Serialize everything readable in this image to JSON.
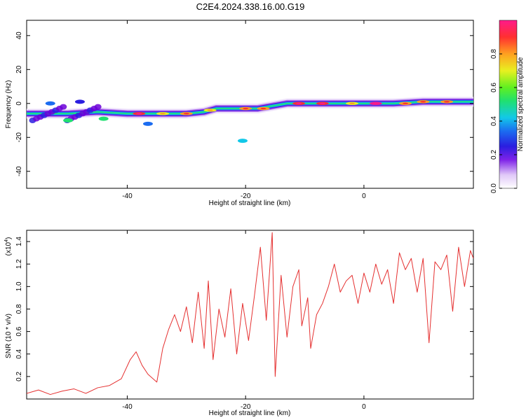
{
  "title": "C2E4.2024.338.16.00.G19",
  "colors": {
    "snr_line": "#e53030",
    "colormap": [
      "#e8d8f8",
      "#b07ef0",
      "#6b00d8",
      "#2a1ee0",
      "#1b6cf0",
      "#12c8e8",
      "#20e070",
      "#60f020",
      "#e8f020",
      "#ffa020",
      "#ff3030",
      "#ff1a8a"
    ]
  },
  "chart_data": [
    {
      "type": "heatmap",
      "xlabel": "Height of straight line (km)",
      "ylabel": "Frequency (Hz)",
      "xlim": [
        -57,
        18.5
      ],
      "ylim": [
        -50,
        49
      ],
      "xticks": [
        -40,
        -20,
        0
      ],
      "xtick_labels": [
        "-40",
        "-20",
        "0"
      ],
      "yticks": [
        -40,
        -20,
        0,
        20,
        40
      ],
      "ytick_labels": [
        "-40",
        "-20",
        "0",
        "20",
        "40"
      ],
      "colorbar": {
        "label": "Normalized spectral amplitude",
        "range": [
          0,
          1
        ],
        "ticks": [
          0.0,
          0.2,
          0.4,
          0.6,
          0.8
        ],
        "tick_labels": [
          "0.0",
          "0.2",
          "0.4",
          "0.6",
          "0.8"
        ]
      },
      "ridge": [
        {
          "x": -57,
          "y": -6
        },
        {
          "x": -50,
          "y": -6
        },
        {
          "x": -45,
          "y": -5
        },
        {
          "x": -40,
          "y": -6
        },
        {
          "x": -35,
          "y": -6
        },
        {
          "x": -30,
          "y": -6
        },
        {
          "x": -27,
          "y": -5
        },
        {
          "x": -25,
          "y": -3
        },
        {
          "x": -18,
          "y": -3
        },
        {
          "x": -13,
          "y": 0
        },
        {
          "x": -5,
          "y": 0
        },
        {
          "x": 0,
          "y": 0
        },
        {
          "x": 5,
          "y": 0
        },
        {
          "x": 10,
          "y": 1
        },
        {
          "x": 18.5,
          "y": 1
        }
      ],
      "peaks": [
        {
          "x": -38,
          "y": -6,
          "v": 0.9
        },
        {
          "x": -34,
          "y": -6,
          "v": 0.75
        },
        {
          "x": -30,
          "y": -6,
          "v": 0.85
        },
        {
          "x": -26,
          "y": -4,
          "v": 0.7
        },
        {
          "x": -20,
          "y": -3,
          "v": 0.85
        },
        {
          "x": -17,
          "y": -3,
          "v": 0.8
        },
        {
          "x": -11,
          "y": 0,
          "v": 0.95
        },
        {
          "x": -7,
          "y": 0,
          "v": 0.9
        },
        {
          "x": -2,
          "y": 0,
          "v": 0.75
        },
        {
          "x": 2,
          "y": 0,
          "v": 1.0
        },
        {
          "x": 7,
          "y": 0,
          "v": 0.85
        },
        {
          "x": 10,
          "y": 1,
          "v": 0.8
        },
        {
          "x": 14,
          "y": 1,
          "v": 0.85
        }
      ],
      "blobs": [
        {
          "x": -20.5,
          "y": -22,
          "v": 0.45
        },
        {
          "x": -36.5,
          "y": -12,
          "v": 0.35
        },
        {
          "x": -44,
          "y": -9,
          "v": 0.55
        },
        {
          "x": -50,
          "y": -10,
          "v": 0.5
        },
        {
          "x": -53,
          "y": 0,
          "v": 0.4
        },
        {
          "x": -48,
          "y": 1,
          "v": 0.3
        }
      ]
    },
    {
      "type": "line",
      "xlabel": "Height of straight line (km)",
      "ylabel": "SNR (10 * v/v)",
      "yscale_label": "(x10",
      "yscale_exp": "4",
      "yscale_close": ")",
      "xlim": [
        -57,
        18.5
      ],
      "ylim": [
        0,
        1.5
      ],
      "xticks": [
        -40,
        -20,
        0
      ],
      "xtick_labels": [
        "-40",
        "-20",
        "0"
      ],
      "yticks": [
        0.2,
        0.4,
        0.6,
        0.8,
        1.0,
        1.2,
        1.4
      ],
      "ytick_labels": [
        "0.2",
        "0.4",
        "0.6",
        "0.8",
        "1.0",
        "1.2",
        "1.4"
      ],
      "series": [
        {
          "x": [
            -57,
            -55,
            -53,
            -51,
            -49,
            -47,
            -45,
            -43,
            -41,
            -39.5,
            -38.5,
            -37.5,
            -36.5,
            -35,
            -34,
            -33,
            -32,
            -31,
            -30,
            -29,
            -28,
            -27,
            -26.3,
            -25.5,
            -24.5,
            -23.5,
            -22.5,
            -21.5,
            -20.5,
            -19.5,
            -18.5,
            -17.5,
            -16.5,
            -15.5,
            -15,
            -14,
            -13,
            -12,
            -11,
            -10.5,
            -9.5,
            -9,
            -8,
            -7,
            -6,
            -5,
            -4,
            -3,
            -2,
            -1,
            0,
            1,
            2,
            3,
            4,
            5,
            6,
            7,
            8,
            9,
            10,
            11,
            12,
            13,
            14,
            15,
            16,
            17,
            18,
            18.5
          ],
          "y": [
            0.05,
            0.08,
            0.04,
            0.07,
            0.09,
            0.05,
            0.1,
            0.12,
            0.18,
            0.35,
            0.42,
            0.3,
            0.22,
            0.15,
            0.45,
            0.62,
            0.75,
            0.6,
            0.82,
            0.5,
            0.95,
            0.45,
            1.05,
            0.35,
            0.8,
            0.55,
            0.98,
            0.4,
            0.85,
            0.52,
            0.92,
            1.35,
            0.7,
            1.48,
            0.2,
            1.1,
            0.55,
            1.0,
            1.15,
            0.65,
            0.9,
            0.45,
            0.75,
            0.85,
            1.0,
            1.2,
            0.95,
            1.05,
            1.1,
            0.85,
            1.12,
            0.95,
            1.2,
            1.02,
            1.15,
            0.85,
            1.3,
            1.15,
            1.25,
            0.95,
            1.25,
            0.5,
            1.22,
            1.15,
            1.28,
            0.78,
            1.35,
            1.0,
            1.32,
            1.25
          ]
        }
      ]
    }
  ]
}
